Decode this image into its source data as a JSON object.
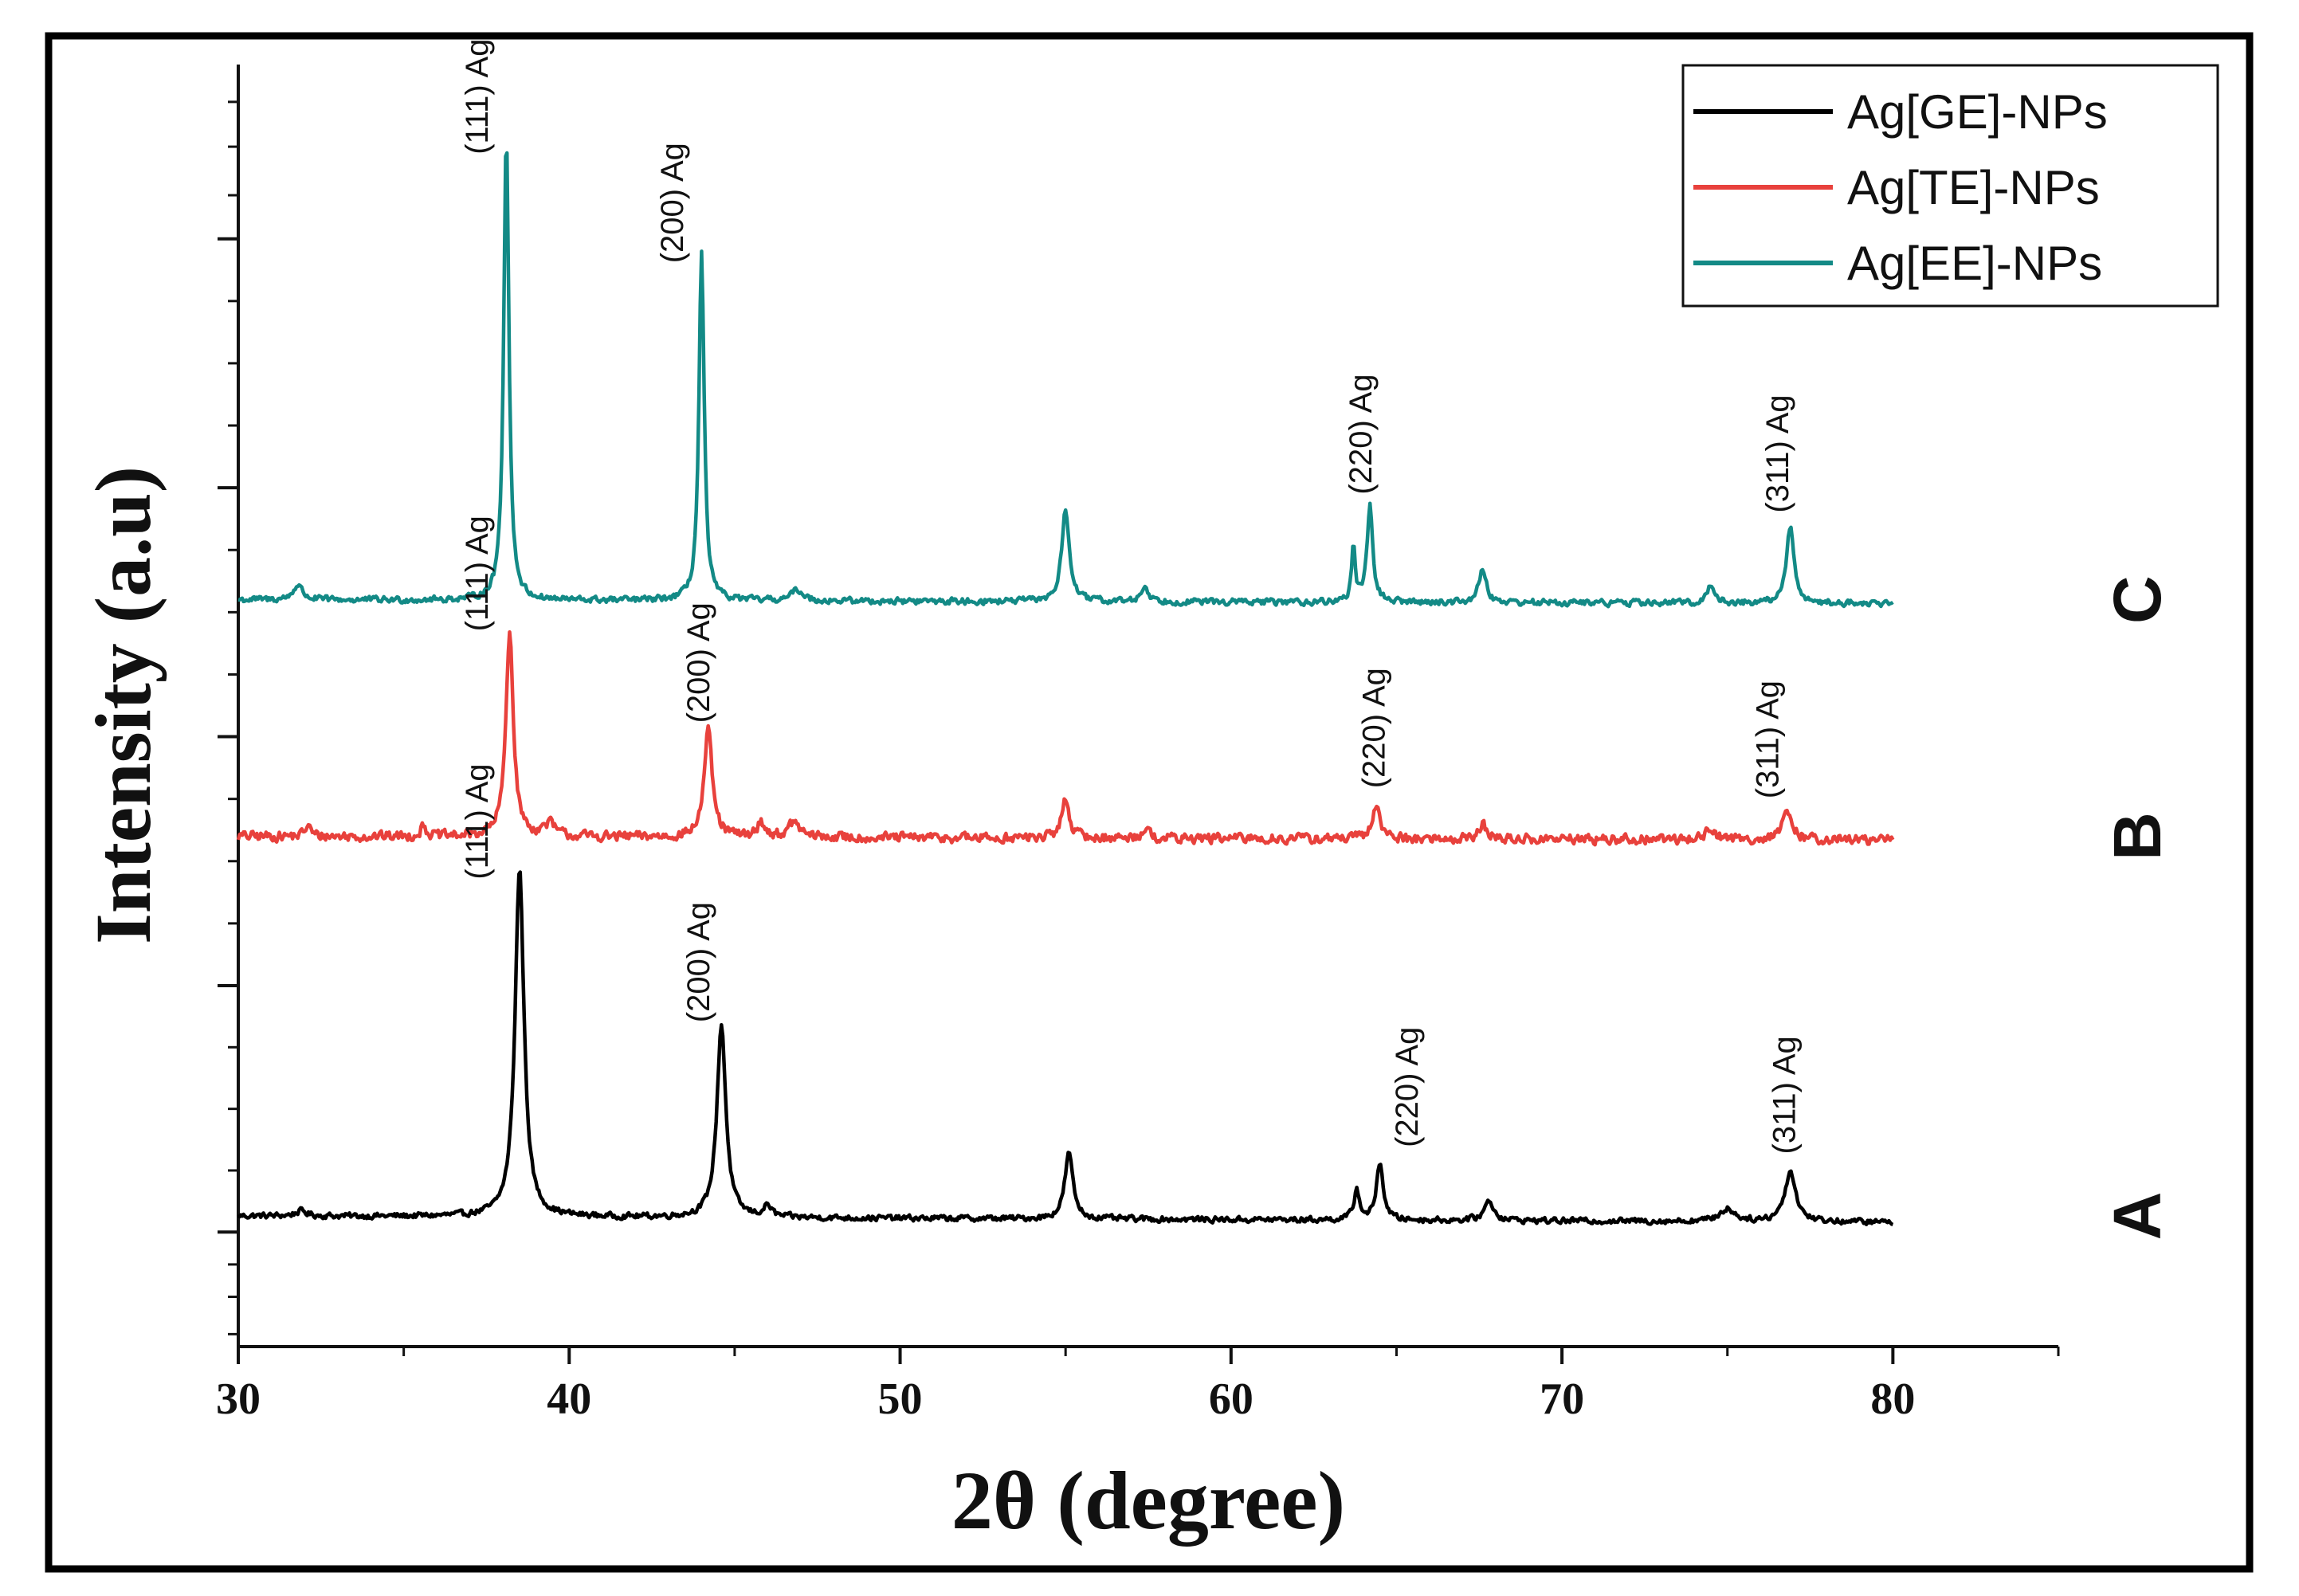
{
  "chart_data": {
    "type": "line",
    "title": "",
    "xlabel": "2θ (degree)",
    "ylabel": "Intensity  (a.u)",
    "xlim": [
      30,
      85
    ],
    "ylim": [
      -3,
      100
    ],
    "x_ticks": [
      30,
      40,
      50,
      60,
      70,
      80
    ],
    "x_tick_labels": [
      "30",
      "40",
      "50",
      "60",
      "70",
      "80"
    ],
    "y_ticks": [
      6.2,
      26,
      46,
      66,
      86
    ],
    "y_ticks_labeled": false,
    "legend": {
      "position": "top-right",
      "entries": [
        {
          "label": "Ag[GE]-NPs",
          "color": "#000000"
        },
        {
          "label": "Ag[TE]-NPs",
          "color": "#e8413c"
        },
        {
          "label": "Ag[EE]-NPs",
          "color": "#138a86"
        }
      ]
    },
    "series": [
      {
        "name": "Ag[GE]-NPs",
        "trace_label": "A",
        "color": "#000000",
        "baseline": 7.5,
        "noise": 0.32,
        "peaks": [
          {
            "x": 31.9,
            "height": 0.4,
            "width": 0.3
          },
          {
            "x": 38.5,
            "height": 28.0,
            "width": 0.24
          },
          {
            "x": 44.6,
            "height": 15.5,
            "width": 0.24
          },
          {
            "x": 46.0,
            "height": 0.9,
            "width": 0.2
          },
          {
            "x": 55.1,
            "height": 5.3,
            "width": 0.22
          },
          {
            "x": 63.8,
            "height": 2.4,
            "width": 0.15
          },
          {
            "x": 64.5,
            "height": 4.6,
            "width": 0.18
          },
          {
            "x": 67.8,
            "height": 1.6,
            "width": 0.25
          },
          {
            "x": 75.0,
            "height": 1.0,
            "width": 0.4
          },
          {
            "x": 76.9,
            "height": 4.0,
            "width": 0.3
          }
        ],
        "annotations": [
          {
            "text": "(111) Ag",
            "x": 37.2
          },
          {
            "text": "(200) Ag",
            "x": 43.9
          },
          {
            "text": "(220) Ag",
            "x": 65.3
          },
          {
            "text": "(311) Ag",
            "x": 76.7
          }
        ]
      },
      {
        "name": "Ag[TE]-NPs",
        "trace_label": "B",
        "color": "#e8413c",
        "baseline": 38.0,
        "noise": 0.55,
        "peaks": [
          {
            "x": 32.1,
            "height": 0.9,
            "width": 0.15
          },
          {
            "x": 35.6,
            "height": 0.9,
            "width": 0.15
          },
          {
            "x": 38.2,
            "height": 16.5,
            "width": 0.2
          },
          {
            "x": 39.4,
            "height": 1.0,
            "width": 0.3
          },
          {
            "x": 44.2,
            "height": 8.5,
            "width": 0.22
          },
          {
            "x": 45.8,
            "height": 1.2,
            "width": 0.2
          },
          {
            "x": 46.8,
            "height": 1.2,
            "width": 0.3
          },
          {
            "x": 55.0,
            "height": 3.2,
            "width": 0.2
          },
          {
            "x": 57.4,
            "height": 0.8,
            "width": 0.2
          },
          {
            "x": 64.4,
            "height": 2.8,
            "width": 0.2
          },
          {
            "x": 67.6,
            "height": 1.2,
            "width": 0.2
          },
          {
            "x": 74.5,
            "height": 0.8,
            "width": 0.3
          },
          {
            "x": 76.8,
            "height": 1.9,
            "width": 0.3
          }
        ],
        "annotations": [
          {
            "text": "(111) Ag",
            "x": 37.2
          },
          {
            "text": "(200) Ag",
            "x": 43.9
          },
          {
            "text": "(220) Ag",
            "x": 64.3
          },
          {
            "text": "(311) Ag",
            "x": 76.2
          }
        ]
      },
      {
        "name": "Ag[EE]-NPs",
        "trace_label": "C",
        "color": "#138a86",
        "baseline": 57.0,
        "noise": 0.35,
        "peaks": [
          {
            "x": 31.8,
            "height": 1.2,
            "width": 0.25
          },
          {
            "x": 38.1,
            "height": 37.5,
            "width": 0.14
          },
          {
            "x": 44.0,
            "height": 28.0,
            "width": 0.14
          },
          {
            "x": 46.9,
            "height": 0.9,
            "width": 0.3
          },
          {
            "x": 55.0,
            "height": 7.5,
            "width": 0.2
          },
          {
            "x": 57.4,
            "height": 1.2,
            "width": 0.2
          },
          {
            "x": 63.7,
            "height": 4.5,
            "width": 0.1
          },
          {
            "x": 64.2,
            "height": 7.8,
            "width": 0.15
          },
          {
            "x": 67.6,
            "height": 2.7,
            "width": 0.2
          },
          {
            "x": 74.5,
            "height": 1.4,
            "width": 0.2
          },
          {
            "x": 76.9,
            "height": 6.2,
            "width": 0.2
          }
        ],
        "annotations": [
          {
            "text": "(111) Ag",
            "x": 37.2
          },
          {
            "text": "(200) Ag",
            "x": 43.1
          },
          {
            "text": "(220) Ag",
            "x": 63.9
          },
          {
            "text": "(311) Ag",
            "x": 76.5
          }
        ]
      }
    ]
  }
}
